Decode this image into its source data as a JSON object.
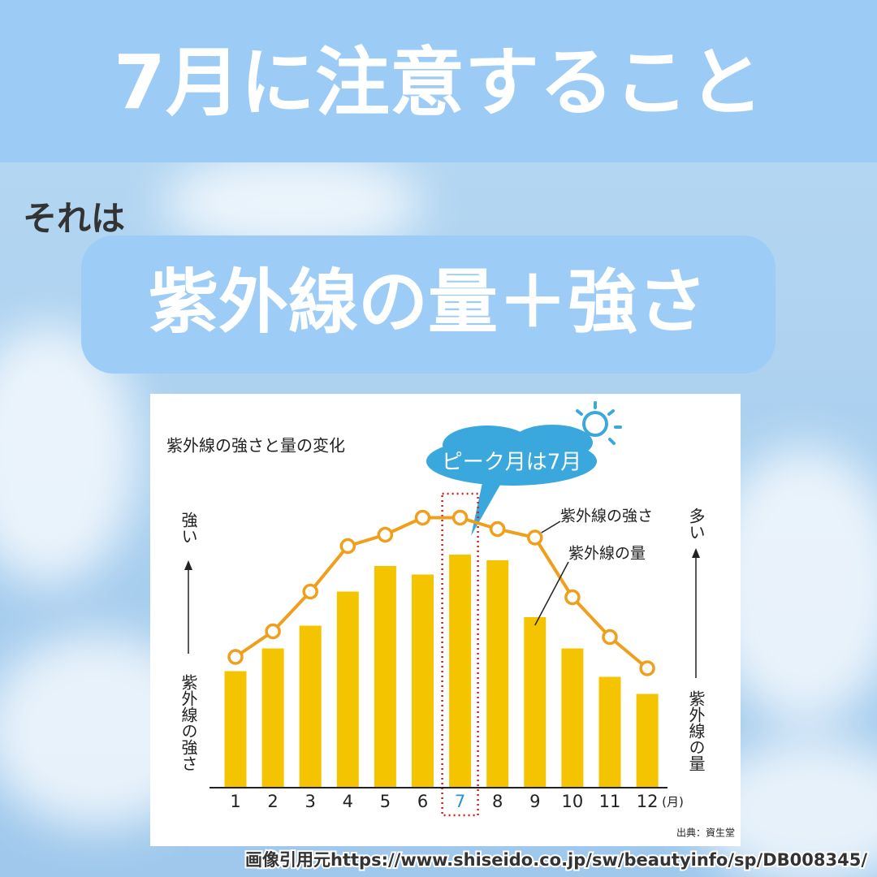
{
  "header": {
    "title": "7月に注意すること",
    "lead": "それは",
    "highlight": "紫外線の量＋強さ"
  },
  "chart_data": {
    "type": "combo",
    "title": "紫外線の強さと量の変化",
    "callout": "ピーク月は7月",
    "categories": [
      "1",
      "2",
      "3",
      "4",
      "5",
      "6",
      "7",
      "8",
      "9",
      "10",
      "11",
      "12"
    ],
    "x_unit": "(月)",
    "highlight_category": "7",
    "highlight_color": "#2a8fd0",
    "series": [
      {
        "name": "紫外線の量",
        "type": "bar",
        "color": "#f5c400",
        "values": [
          41,
          49,
          57,
          69,
          78,
          75,
          82,
          80,
          60,
          49,
          39,
          33
        ]
      },
      {
        "name": "紫外線の強さ",
        "type": "line",
        "color": "#ef9f1c",
        "values": [
          46,
          55,
          69,
          85,
          89,
          95,
          95,
          91,
          88,
          67,
          53,
          42
        ]
      }
    ],
    "ylim": [
      0,
      100
    ],
    "y_label_top": "強い",
    "y_label": "紫外線の強さ",
    "y2_label_top": "多い",
    "y2_label": "紫外線の量",
    "source": "出典：資生堂"
  },
  "footer": {
    "credit": "画像引用元https://www.shiseido.co.jp/sw/beautyinfo/sp/DB008345/"
  }
}
